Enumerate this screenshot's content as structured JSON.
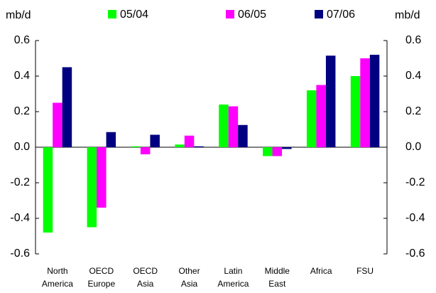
{
  "chart_data": {
    "type": "bar",
    "y_label": "mb/d",
    "y2_label": "mb/d",
    "categories": [
      "North America",
      "OECD Europe",
      "OECD Asia",
      "Other Asia",
      "Latin America",
      "Middle East",
      "Africa",
      "FSU"
    ],
    "series": [
      {
        "name": "05/04",
        "color": "#00ff00",
        "values": [
          -0.48,
          -0.45,
          0.005,
          0.015,
          0.24,
          -0.05,
          0.32,
          0.4
        ]
      },
      {
        "name": "06/05",
        "color": "#ff00ff",
        "values": [
          0.25,
          -0.34,
          -0.04,
          0.065,
          0.23,
          -0.05,
          0.35,
          0.5
        ]
      },
      {
        "name": "07/06",
        "color": "#000080",
        "values": [
          0.45,
          0.085,
          0.07,
          0.005,
          0.125,
          -0.01,
          0.515,
          0.52
        ]
      }
    ],
    "ylim": [
      -0.6,
      0.6
    ],
    "yticks": [
      -0.6,
      -0.4,
      -0.2,
      {
        "value": 0,
        "label": "0.0"
      },
      0.2,
      0.4,
      0.6
    ],
    "y2lim": [
      -0.6,
      0.6
    ],
    "y2ticks": [
      -0.6,
      -0.4,
      -0.2,
      {
        "value": 0,
        "label": "0.0"
      },
      0.2,
      0.4,
      0.6
    ],
    "legend": "top"
  }
}
